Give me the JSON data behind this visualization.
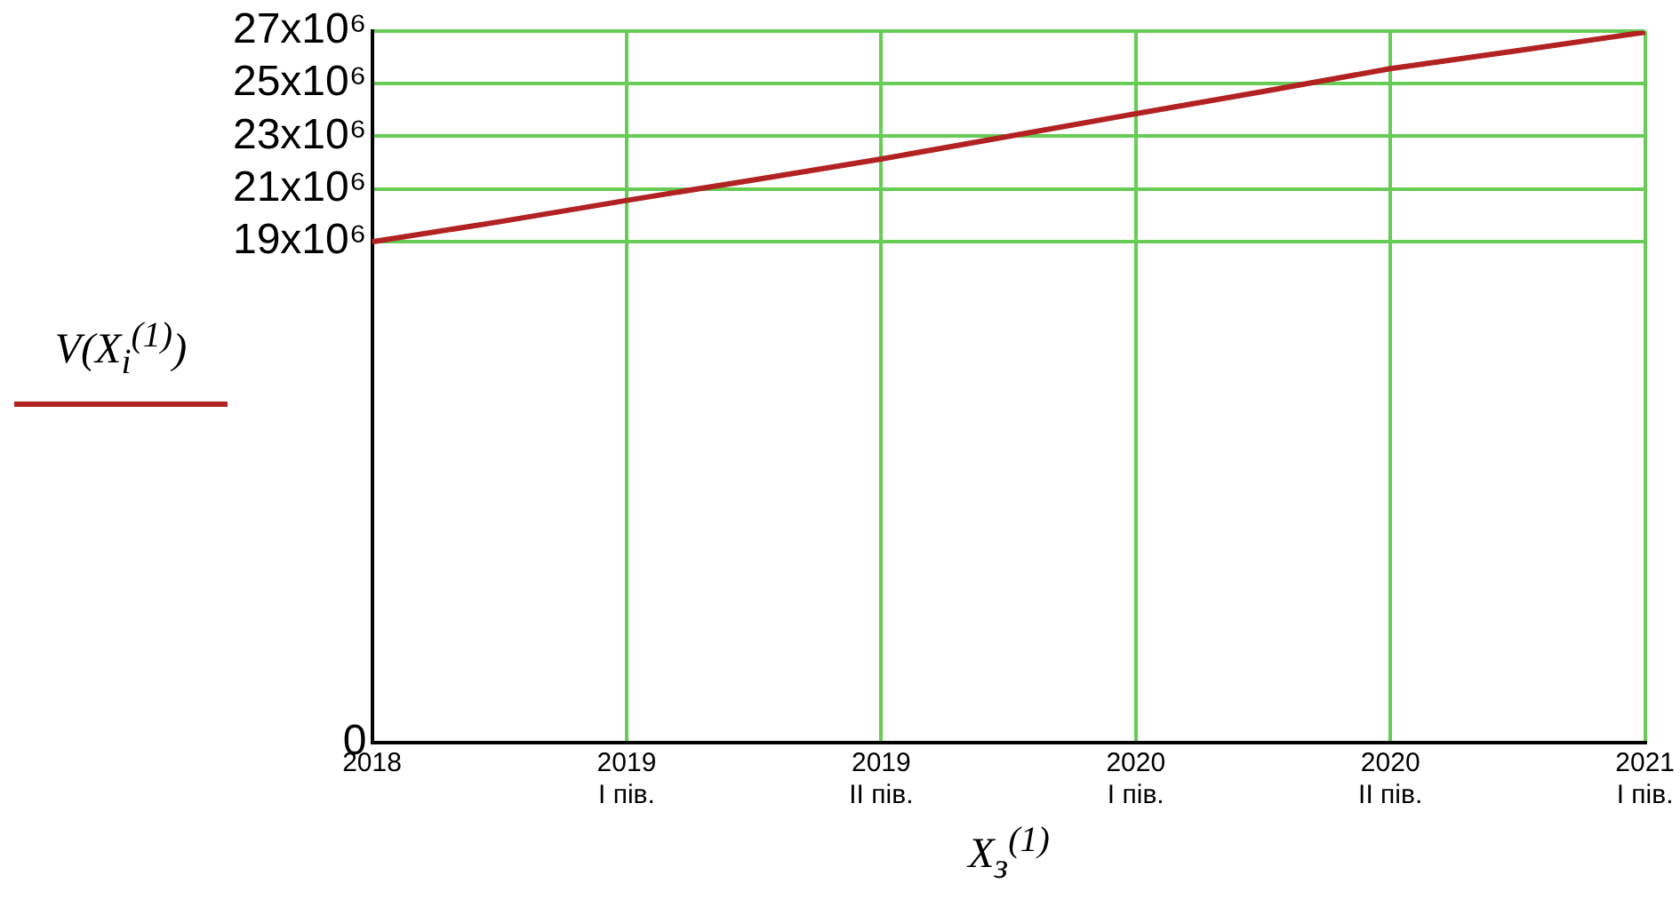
{
  "chart_data": {
    "type": "line",
    "xlabel": "X$_{з}$$^{(1)}$",
    "categories": [
      "2018",
      null,
      "2019\nI пів.",
      null,
      "2019\nII пів.",
      null,
      "2020\nI пів.",
      null,
      "2020\nII пів.",
      null,
      "2021\nI пів."
    ],
    "series": [
      {
        "name": "V(X$_{i}$$^{(1)}$)",
        "color": "#b22222",
        "values": [
          19000000,
          19760000,
          20570000,
          21350000,
          22140000,
          23000000,
          23860000,
          24700000,
          25570000,
          26250000,
          26950000
        ]
      }
    ],
    "ylim": [
      0,
      27000000
    ],
    "yticks": [
      0,
      {
        "value": 19000000,
        "label": "19x10⁶"
      },
      {
        "value": 21000000,
        "label": "21x10⁶"
      },
      {
        "value": 23000000,
        "label": "23x10⁶"
      },
      {
        "value": 25000000,
        "label": "25x10⁶"
      },
      {
        "value": 27000000,
        "label": "27x10⁶"
      }
    ],
    "grid": true,
    "legend": "left",
    "marker": "none",
    "line_style": "solid"
  }
}
